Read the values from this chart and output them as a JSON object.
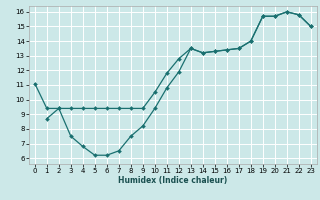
{
  "xlabel": "Humidex (Indice chaleur)",
  "bg_color": "#cce8e8",
  "grid_color": "#ffffff",
  "line_color": "#1a7070",
  "xlim": [
    -0.5,
    23.5
  ],
  "ylim": [
    5.6,
    16.4
  ],
  "xticks": [
    0,
    1,
    2,
    3,
    4,
    5,
    6,
    7,
    8,
    9,
    10,
    11,
    12,
    13,
    14,
    15,
    16,
    17,
    18,
    19,
    20,
    21,
    22,
    23
  ],
  "yticks": [
    6,
    7,
    8,
    9,
    10,
    11,
    12,
    13,
    14,
    15,
    16
  ],
  "curve1_x": [
    0,
    1,
    2,
    3,
    4,
    5,
    6,
    7,
    8,
    9,
    10,
    11,
    12,
    13,
    14,
    15,
    16,
    17,
    18,
    19,
    20,
    21,
    22,
    23
  ],
  "curve1_y": [
    11.1,
    9.4,
    9.4,
    9.4,
    9.4,
    9.4,
    9.4,
    9.4,
    9.4,
    9.4,
    10.5,
    11.8,
    12.8,
    13.5,
    13.2,
    13.3,
    13.4,
    13.5,
    14.0,
    15.7,
    15.7,
    16.0,
    15.8,
    15.0
  ],
  "curve2_x": [
    1,
    2,
    3,
    4,
    5,
    6,
    7,
    8,
    9,
    10,
    11,
    12,
    13,
    14,
    15,
    16,
    17,
    18,
    19,
    20,
    21,
    22,
    23
  ],
  "curve2_y": [
    8.7,
    9.4,
    7.5,
    6.8,
    6.2,
    6.2,
    6.5,
    7.5,
    8.2,
    9.4,
    10.8,
    11.9,
    13.5,
    13.2,
    13.3,
    13.4,
    13.5,
    14.0,
    15.7,
    15.7,
    16.0,
    15.8,
    15.0
  ]
}
